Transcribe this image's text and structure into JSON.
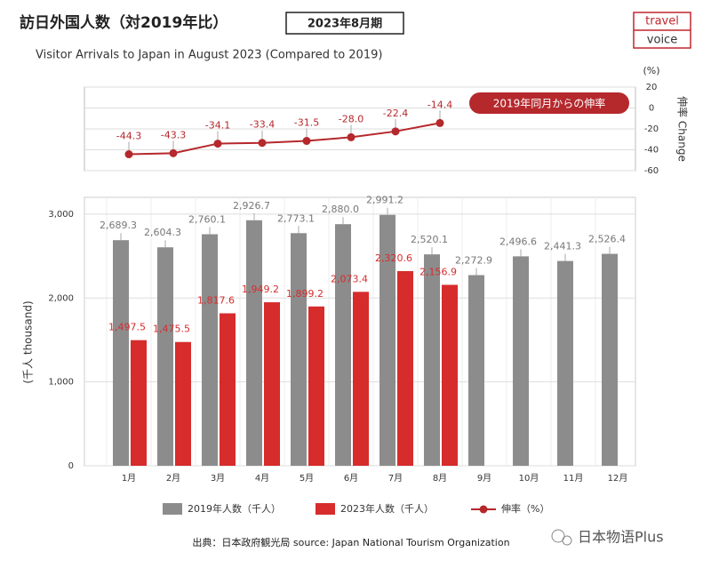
{
  "header": {
    "title": "訪日外国人数（対2019年比）",
    "badge": "2023年8月期",
    "subtitle": "Visitor Arrivals to Japan in August 2023 (Compared to 2019)",
    "logo": [
      "travel",
      "voice"
    ]
  },
  "chart_data": [
    {
      "type": "line",
      "y2unit": "(%)",
      "y2label": "伸率 Change",
      "annotation": "2019年同月からの伸率",
      "y2lim": [
        -60,
        20
      ],
      "y2ticks": [
        -60,
        -40,
        -20,
        0,
        20
      ],
      "grid": true,
      "series": [
        {
          "name": "伸率（%）",
          "color": "#b5282c",
          "axis": "y2",
          "values": [
            -44.3,
            -43.3,
            -34.1,
            -33.4,
            -31.5,
            -28.0,
            -22.4,
            -14.4
          ],
          "value_labels": [
            "-44.3",
            "-43.3",
            "-34.1",
            "-33.4",
            "-31.5",
            "-28.0",
            "-22.4",
            "-14.4"
          ]
        }
      ]
    },
    {
      "type": "bar",
      "ylabel": "(千人 thousand)",
      "ylim": [
        0,
        3200
      ],
      "grid": true,
      "yticks": [
        0,
        {
          "value": 1000,
          "label": "1,000"
        },
        {
          "value": 2000,
          "label": "2,000"
        },
        {
          "value": 3000,
          "label": "3,000"
        }
      ],
      "categories": [
        "1月",
        "2月",
        "3月",
        "4月",
        "5月",
        "6月",
        "7月",
        "8月",
        "9月",
        "10月",
        "11月",
        "12月"
      ],
      "series": [
        {
          "name": "2019年人数（千人）",
          "color": "#8c8c8c",
          "values": [
            2689.3,
            2604.3,
            2760.1,
            2926.7,
            2773.1,
            2880.0,
            2991.2,
            2520.1,
            2272.9,
            2496.6,
            2441.3,
            2526.4
          ],
          "value_labels": [
            "2,689.3",
            "2,604.3",
            "2,760.1",
            "2,926.7",
            "2,773.1",
            "2,880.0",
            "2,991.2",
            "2,520.1",
            "2,272.9",
            "2,496.6",
            "2,441.3",
            "2,526.4"
          ]
        },
        {
          "name": "2023年人数（千人）",
          "color": "#d62c2c",
          "values": [
            1497.5,
            1475.5,
            1817.6,
            1949.2,
            1899.2,
            2073.4,
            2320.6,
            2156.9,
            null,
            null,
            null,
            null
          ],
          "value_labels": [
            "1,497.5",
            "1,475.5",
            "1,817.6",
            "1,949.2",
            "1,899.2",
            "2,073.4",
            "2,320.6",
            "2,156.9",
            null,
            null,
            null,
            null
          ]
        }
      ]
    }
  ],
  "footer": {
    "source": "出典：日本政府観光局  source: Japan National Tourism Organization",
    "watermark": "日本物语Plus"
  }
}
